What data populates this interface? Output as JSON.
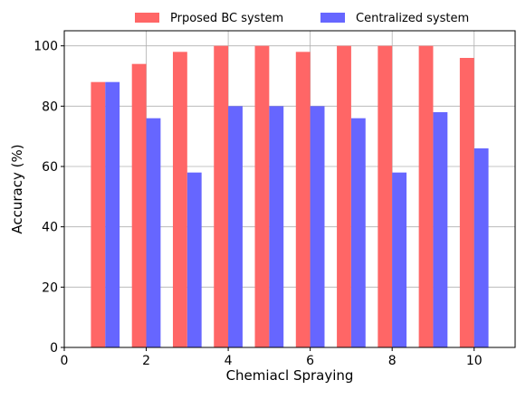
{
  "chart_data": {
    "type": "bar",
    "title": "",
    "xlabel": "Chemiacl Spraying",
    "ylabel": "Accuracy (%)",
    "xlim": [
      0,
      11
    ],
    "ylim": [
      0,
      105
    ],
    "x_ticks": [
      0,
      2,
      4,
      6,
      8,
      10
    ],
    "y_ticks": [
      0,
      20,
      40,
      60,
      80,
      100
    ],
    "grid": true,
    "legend_position": "top",
    "x": [
      1,
      2,
      3,
      4,
      5,
      6,
      7,
      8,
      9,
      10
    ],
    "series": [
      {
        "name": "Prposed BC system",
        "color": "#ff6666",
        "values": [
          88,
          94,
          98,
          100,
          100,
          98,
          100,
          100,
          100,
          96
        ]
      },
      {
        "name": "Centralized system",
        "color": "#6666ff",
        "values": [
          88,
          76,
          58,
          80,
          80,
          80,
          76,
          58,
          78,
          66
        ]
      }
    ]
  }
}
